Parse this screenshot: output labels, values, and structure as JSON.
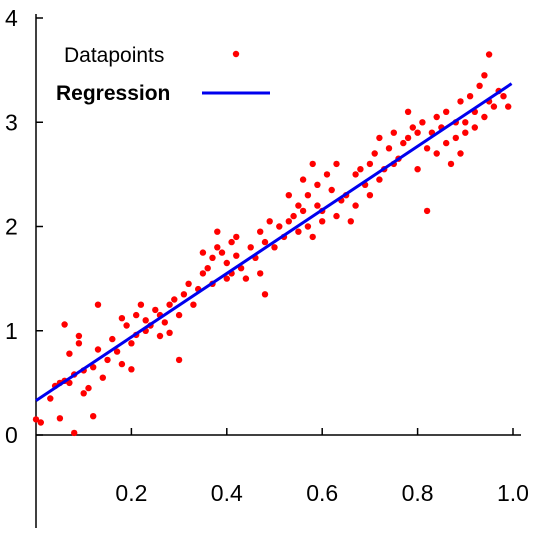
{
  "chart_data": {
    "type": "scatter",
    "xlim": [
      0,
      1.0
    ],
    "ylim": [
      0,
      4
    ],
    "x_ticks": [
      0.2,
      0.4,
      0.6,
      0.8,
      1.0
    ],
    "x_tick_labels": [
      "0.2",
      "0.4",
      "0.6",
      "0.8",
      "1.0"
    ],
    "y_ticks": [
      0,
      1,
      2,
      3,
      4
    ],
    "y_tick_labels": [
      "0",
      "1",
      "2",
      "3",
      "4"
    ],
    "grid": false,
    "legend_position": "top-left",
    "series": [
      {
        "name": "Datapoints",
        "kind": "scatter",
        "color": "#ff0000",
        "points": [
          [
            0.0,
            0.15
          ],
          [
            0.01,
            0.12
          ],
          [
            0.03,
            0.35
          ],
          [
            0.04,
            0.47
          ],
          [
            0.05,
            0.16
          ],
          [
            0.05,
            0.5
          ],
          [
            0.06,
            1.06
          ],
          [
            0.06,
            0.52
          ],
          [
            0.07,
            0.78
          ],
          [
            0.07,
            0.5
          ],
          [
            0.08,
            0.02
          ],
          [
            0.08,
            0.58
          ],
          [
            0.09,
            0.95
          ],
          [
            0.09,
            0.88
          ],
          [
            0.1,
            0.4
          ],
          [
            0.1,
            0.62
          ],
          [
            0.11,
            0.45
          ],
          [
            0.12,
            0.65
          ],
          [
            0.12,
            0.18
          ],
          [
            0.13,
            1.25
          ],
          [
            0.13,
            0.82
          ],
          [
            0.14,
            0.55
          ],
          [
            0.15,
            0.72
          ],
          [
            0.16,
            0.92
          ],
          [
            0.17,
            0.8
          ],
          [
            0.18,
            1.12
          ],
          [
            0.18,
            0.68
          ],
          [
            0.19,
            1.05
          ],
          [
            0.2,
            0.63
          ],
          [
            0.2,
            0.88
          ],
          [
            0.21,
            1.15
          ],
          [
            0.21,
            0.96
          ],
          [
            0.22,
            1.25
          ],
          [
            0.23,
            1.0
          ],
          [
            0.23,
            1.1
          ],
          [
            0.24,
            1.05
          ],
          [
            0.25,
            1.2
          ],
          [
            0.26,
            0.95
          ],
          [
            0.26,
            1.15
          ],
          [
            0.27,
            1.08
          ],
          [
            0.28,
            1.25
          ],
          [
            0.28,
            0.98
          ],
          [
            0.29,
            1.3
          ],
          [
            0.3,
            0.72
          ],
          [
            0.3,
            1.15
          ],
          [
            0.31,
            1.35
          ],
          [
            0.32,
            1.45
          ],
          [
            0.33,
            1.25
          ],
          [
            0.34,
            1.4
          ],
          [
            0.35,
            1.55
          ],
          [
            0.35,
            1.75
          ],
          [
            0.36,
            1.6
          ],
          [
            0.37,
            1.45
          ],
          [
            0.37,
            1.7
          ],
          [
            0.38,
            1.95
          ],
          [
            0.38,
            1.8
          ],
          [
            0.39,
            1.75
          ],
          [
            0.4,
            1.5
          ],
          [
            0.4,
            1.65
          ],
          [
            0.41,
            1.85
          ],
          [
            0.41,
            1.55
          ],
          [
            0.42,
            1.72
          ],
          [
            0.42,
            1.9
          ],
          [
            0.43,
            1.6
          ],
          [
            0.44,
            1.5
          ],
          [
            0.45,
            1.8
          ],
          [
            0.46,
            1.7
          ],
          [
            0.47,
            1.95
          ],
          [
            0.47,
            1.55
          ],
          [
            0.48,
            1.85
          ],
          [
            0.48,
            1.35
          ],
          [
            0.49,
            2.05
          ],
          [
            0.5,
            1.8
          ],
          [
            0.51,
            2.0
          ],
          [
            0.52,
            1.9
          ],
          [
            0.53,
            2.05
          ],
          [
            0.53,
            2.3
          ],
          [
            0.54,
            2.1
          ],
          [
            0.55,
            1.95
          ],
          [
            0.55,
            2.2
          ],
          [
            0.56,
            2.15
          ],
          [
            0.56,
            2.45
          ],
          [
            0.57,
            2.0
          ],
          [
            0.57,
            2.3
          ],
          [
            0.58,
            2.6
          ],
          [
            0.58,
            1.9
          ],
          [
            0.59,
            2.2
          ],
          [
            0.59,
            2.4
          ],
          [
            0.6,
            2.05
          ],
          [
            0.6,
            2.15
          ],
          [
            0.61,
            2.5
          ],
          [
            0.62,
            2.35
          ],
          [
            0.63,
            2.1
          ],
          [
            0.63,
            2.6
          ],
          [
            0.64,
            2.25
          ],
          [
            0.65,
            2.3
          ],
          [
            0.66,
            2.05
          ],
          [
            0.67,
            2.5
          ],
          [
            0.67,
            2.2
          ],
          [
            0.68,
            2.55
          ],
          [
            0.69,
            2.4
          ],
          [
            0.7,
            2.6
          ],
          [
            0.7,
            2.3
          ],
          [
            0.71,
            2.7
          ],
          [
            0.72,
            2.45
          ],
          [
            0.72,
            2.85
          ],
          [
            0.73,
            2.55
          ],
          [
            0.74,
            2.75
          ],
          [
            0.75,
            2.6
          ],
          [
            0.75,
            2.9
          ],
          [
            0.76,
            2.65
          ],
          [
            0.77,
            2.8
          ],
          [
            0.78,
            2.85
          ],
          [
            0.78,
            3.1
          ],
          [
            0.79,
            2.95
          ],
          [
            0.8,
            2.55
          ],
          [
            0.8,
            2.9
          ],
          [
            0.81,
            3.0
          ],
          [
            0.82,
            2.15
          ],
          [
            0.82,
            2.75
          ],
          [
            0.83,
            2.9
          ],
          [
            0.84,
            3.05
          ],
          [
            0.84,
            2.7
          ],
          [
            0.85,
            2.95
          ],
          [
            0.86,
            3.1
          ],
          [
            0.86,
            2.8
          ],
          [
            0.87,
            2.6
          ],
          [
            0.88,
            3.0
          ],
          [
            0.88,
            2.85
          ],
          [
            0.89,
            3.2
          ],
          [
            0.89,
            2.7
          ],
          [
            0.9,
            3.0
          ],
          [
            0.9,
            2.9
          ],
          [
            0.91,
            3.25
          ],
          [
            0.92,
            2.95
          ],
          [
            0.92,
            3.1
          ],
          [
            0.93,
            3.35
          ],
          [
            0.94,
            3.05
          ],
          [
            0.94,
            3.45
          ],
          [
            0.95,
            3.2
          ],
          [
            0.95,
            3.65
          ],
          [
            0.96,
            3.15
          ],
          [
            0.97,
            3.3
          ],
          [
            0.98,
            3.25
          ],
          [
            0.99,
            3.15
          ]
        ]
      },
      {
        "name": "Regression",
        "kind": "line",
        "color": "#0000ee",
        "points": [
          [
            0.0,
            0.33
          ],
          [
            0.997,
            3.37
          ]
        ]
      }
    ]
  }
}
